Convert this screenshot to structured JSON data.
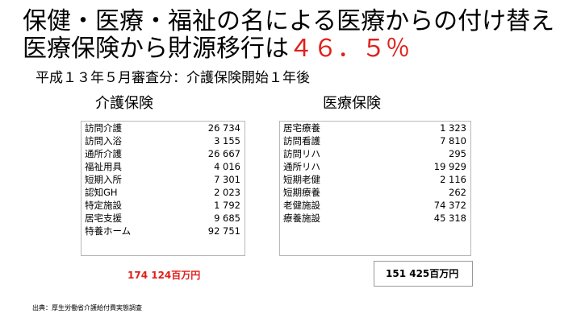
{
  "title": {
    "line1": "保健・医療・福祉の名による医療からの付け替え",
    "line2_prefix": "医療保険から財源移行は",
    "line2_highlight": "４６．５％"
  },
  "subtitle": "平成１３年５月審査分：介護保険開始１年後",
  "kaigo": {
    "heading": "介護保険",
    "rows": [
      {
        "label": "訪問介護",
        "value": "26 734"
      },
      {
        "label": "訪問入浴",
        "value": "3 155"
      },
      {
        "label": "通所介護",
        "value": "26 667"
      },
      {
        "label": "福祉用具",
        "value": "4 016"
      },
      {
        "label": "短期入所",
        "value": "7 301"
      },
      {
        "label": "認知GH",
        "value": "2 023"
      },
      {
        "label": "特定施設",
        "value": "1 792"
      },
      {
        "label": "居宅支援",
        "value": "9 685"
      },
      {
        "label": "特養ホーム",
        "value": "92 751"
      }
    ],
    "total": "174 124百万円"
  },
  "iryo": {
    "heading": "医療保険",
    "rows": [
      {
        "label": "居宅療養",
        "value": "1 323"
      },
      {
        "label": "訪問看護",
        "value": "7 810"
      },
      {
        "label": "訪問リハ",
        "value": "295"
      },
      {
        "label": "通所リハ",
        "value": "19 929"
      },
      {
        "label": "短期老健",
        "value": "2 116"
      },
      {
        "label": "短期療養",
        "value": "262"
      },
      {
        "label": "老健施設",
        "value": "74 372"
      },
      {
        "label": "療養施設",
        "value": "45 318"
      }
    ],
    "total": "151 425百万円"
  },
  "source": "出典：厚生労働省介護給付費実態調査",
  "colors": {
    "highlight": "#e0201b",
    "border": "#b8b8b8"
  }
}
